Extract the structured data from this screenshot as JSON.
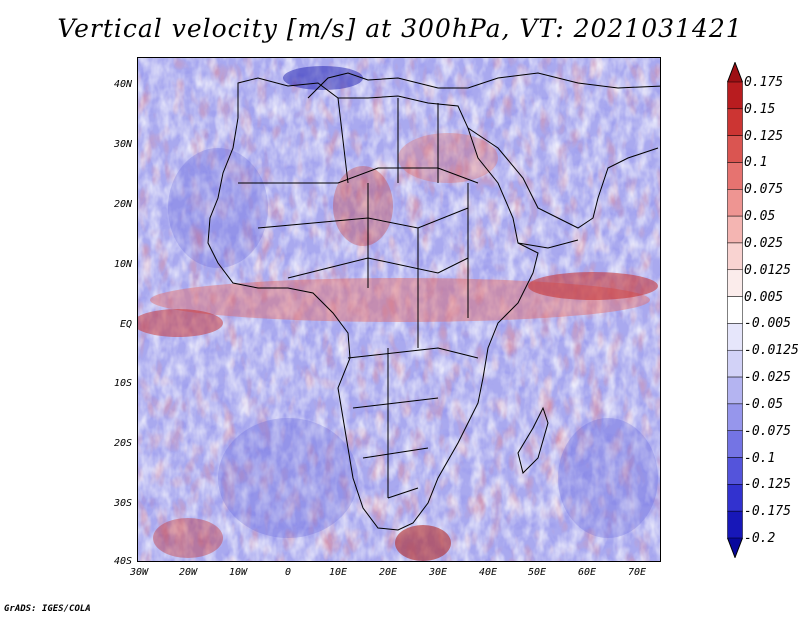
{
  "title": "Vertical velocity [m/s] at 300hPa, VT: 2021031421",
  "footer": "GrADS: IGES/COLA",
  "lat_labels": [
    "40N",
    "30N",
    "20N",
    "10N",
    "EQ",
    "10S",
    "20S",
    "30S",
    "40S"
  ],
  "lon_labels": [
    "30W",
    "20W",
    "10W",
    "0",
    "10E",
    "20E",
    "30E",
    "40E",
    "50E",
    "60E",
    "70E"
  ],
  "colorbar": {
    "labels": [
      "0.175",
      "0.15",
      "0.125",
      "0.1",
      "0.075",
      "0.05",
      "0.025",
      "0.0125",
      "0.005",
      "-0.005",
      "-0.0125",
      "-0.025",
      "-0.05",
      "-0.075",
      "-0.1",
      "-0.125",
      "-0.175",
      "-0.2"
    ],
    "colors": [
      "#9e0f14",
      "#b81c1f",
      "#cc3533",
      "#da5551",
      "#e67370",
      "#ee9592",
      "#f4b5b2",
      "#f9d3d1",
      "#fbeceb",
      "#ffffff",
      "#e6e6fb",
      "#d2d2f7",
      "#b4b4f1",
      "#9696ec",
      "#7474e4",
      "#5454db",
      "#3232cf",
      "#1717b8",
      "#08089c"
    ]
  },
  "palette": {
    "warm": "#d9534f",
    "cool": "#5a5ae0",
    "neutral": "#ffffff",
    "coast": "#000000"
  }
}
